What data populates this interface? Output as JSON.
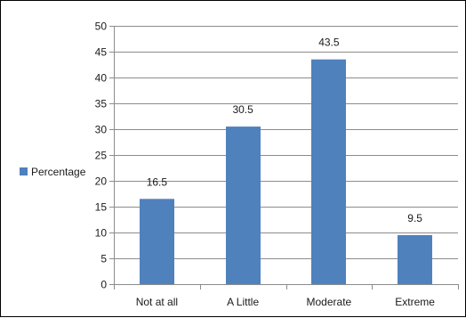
{
  "chart_data": {
    "type": "bar",
    "categories": [
      "Not at all",
      "A Little",
      "Moderate",
      "Extreme"
    ],
    "series": [
      {
        "name": "Percentage",
        "values": [
          16.5,
          30.5,
          43.5,
          9.5
        ],
        "color": "#4f81bd"
      }
    ],
    "data_labels": [
      "16.5",
      "30.5",
      "43.5",
      "9.5"
    ],
    "ylim": [
      0,
      50
    ],
    "yticks": [
      "0",
      "5",
      "10",
      "15",
      "20",
      "25",
      "30",
      "35",
      "40",
      "45",
      "50"
    ],
    "grid": true,
    "legend_position": "left"
  }
}
